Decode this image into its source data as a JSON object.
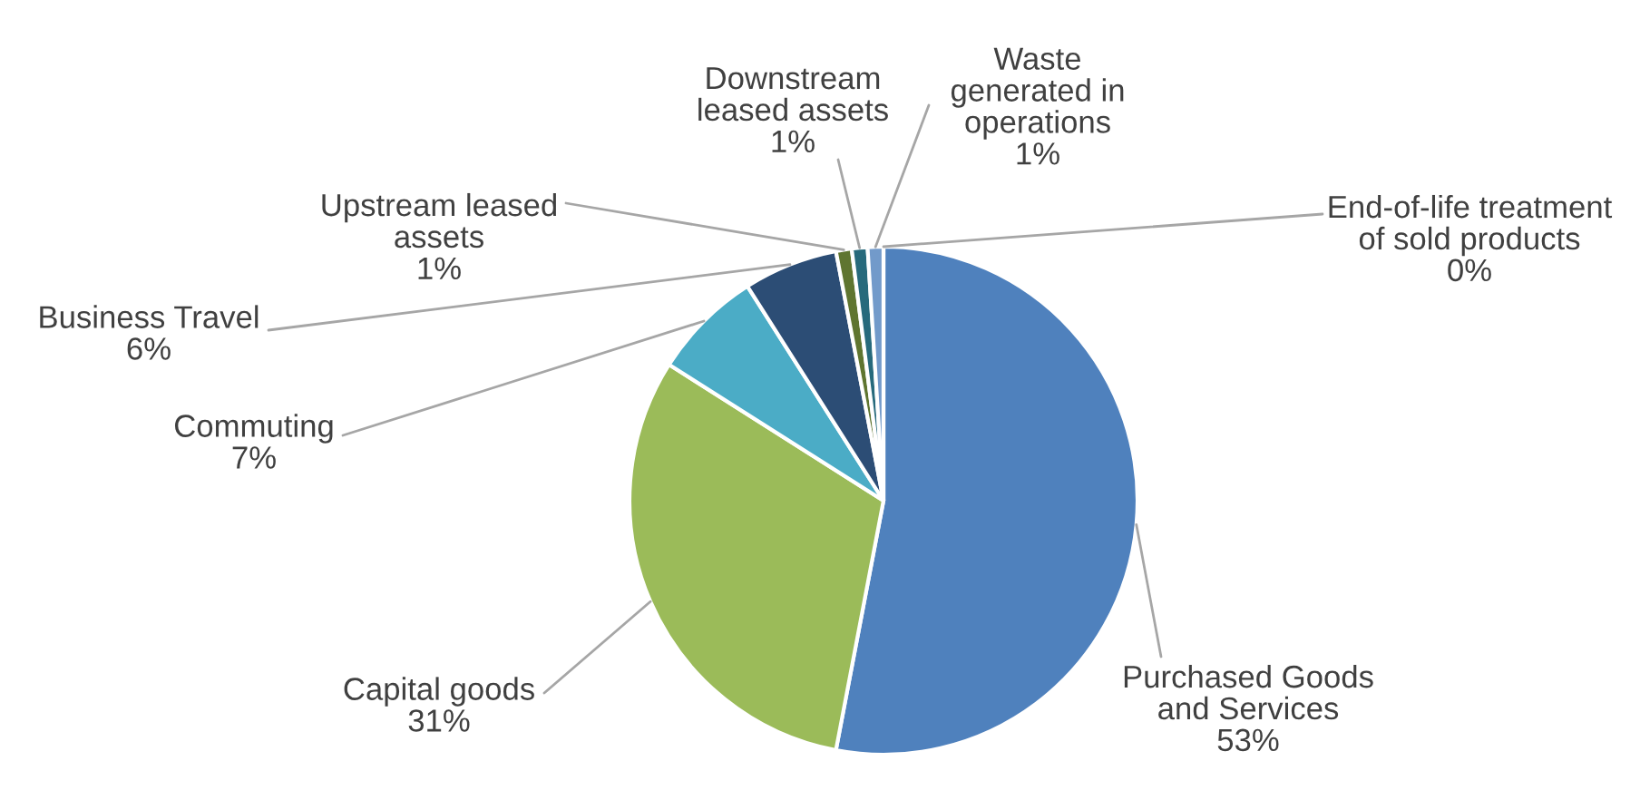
{
  "chart_data": {
    "type": "pie",
    "categories": [
      "Purchased Goods\nand Services",
      "Capital goods",
      "Commuting",
      "Business Travel",
      "Upstream leased\nassets",
      "Downstream\nleased assets",
      "Waste\ngenerated in\noperations",
      "End-of-life treatment\nof sold products"
    ],
    "values": [
      53,
      31,
      7,
      6,
      1,
      1,
      1,
      0
    ],
    "value_labels": [
      "53%",
      "31%",
      "7%",
      "6%",
      "1%",
      "1%",
      "1%",
      "0%"
    ],
    "colors": [
      "#4f81bd",
      "#9bbb59",
      "#4bacc6",
      "#2c4d75",
      "#5f7530",
      "#276a7c",
      "#729aca",
      "#afc97a"
    ]
  }
}
